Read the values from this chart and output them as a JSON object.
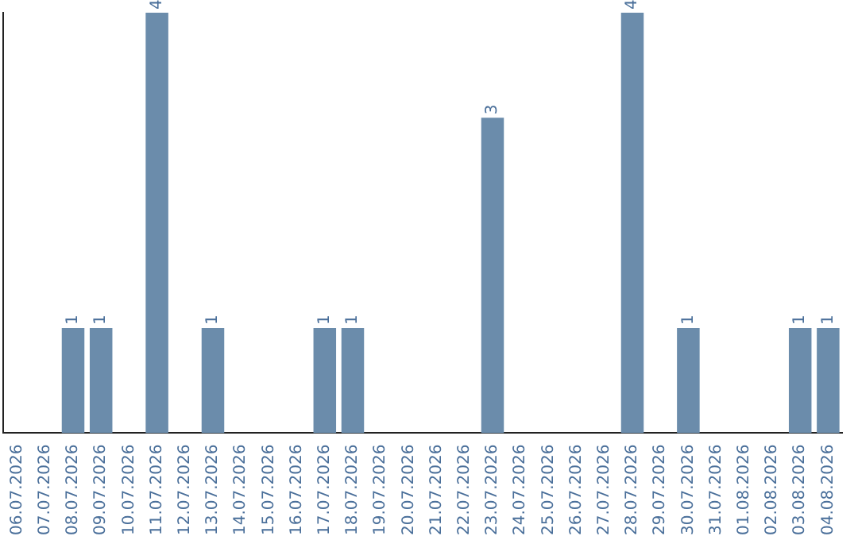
{
  "chart_data": {
    "type": "bar",
    "categories": [
      "06.07.2026",
      "07.07.2026",
      "08.07.2026",
      "09.07.2026",
      "10.07.2026",
      "11.07.2026",
      "12.07.2026",
      "13.07.2026",
      "14.07.2026",
      "15.07.2026",
      "16.07.2026",
      "17.07.2026",
      "18.07.2026",
      "19.07.2026",
      "20.07.2026",
      "21.07.2026",
      "22.07.2026",
      "23.07.2026",
      "24.07.2026",
      "25.07.2026",
      "26.07.2026",
      "27.07.2026",
      "28.07.2026",
      "29.07.2026",
      "30.07.2026",
      "31.07.2026",
      "01.08.2026",
      "02.08.2026",
      "03.08.2026",
      "04.08.2026"
    ],
    "values": [
      null,
      null,
      1,
      1,
      null,
      4,
      null,
      1,
      null,
      null,
      null,
      1,
      1,
      null,
      null,
      null,
      null,
      3,
      null,
      null,
      null,
      null,
      4,
      null,
      1,
      null,
      null,
      null,
      1,
      1
    ],
    "color": "#6b8cab",
    "data_labels": true,
    "tick_labels": "x",
    "grid": false,
    "legend": false
  }
}
